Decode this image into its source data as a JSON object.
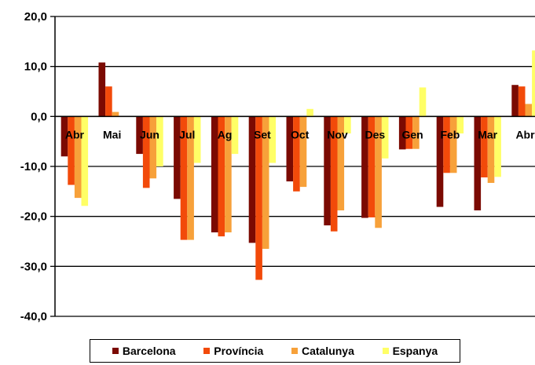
{
  "chart_data": {
    "type": "bar",
    "categories": [
      "Abr",
      "Mai",
      "Jun",
      "Jul",
      "Ag",
      "Set",
      "Oct",
      "Nov",
      "Des",
      "Gen",
      "Feb",
      "Mar",
      "Abr"
    ],
    "series": [
      {
        "name": "Barcelona",
        "color": "#7b0a02",
        "values": [
          -8.0,
          10.8,
          -7.5,
          -16.5,
          -23.2,
          -25.3,
          -13.0,
          -21.8,
          -20.3,
          -6.6,
          -18.1,
          -18.8,
          6.3
        ]
      },
      {
        "name": "Província",
        "color": "#f24a0a",
        "values": [
          -13.7,
          6.0,
          -14.3,
          -24.7,
          -24.0,
          -32.7,
          -15.0,
          -23.0,
          -20.2,
          -6.5,
          -11.3,
          -12.2,
          6.0
        ]
      },
      {
        "name": "Catalunya",
        "color": "#f7a13a",
        "values": [
          -16.3,
          0.9,
          -12.4,
          -24.7,
          -23.2,
          -26.5,
          -14.1,
          -18.8,
          -22.3,
          -6.5,
          -11.3,
          -13.3,
          2.5
        ]
      },
      {
        "name": "Espanya",
        "color": "#ffff66",
        "values": [
          -17.9,
          0.0,
          -10.0,
          -9.3,
          -7.5,
          -9.3,
          1.5,
          -3.4,
          -8.4,
          5.8,
          -3.4,
          -12.1,
          13.2
        ]
      }
    ],
    "yticks": [
      "20,0",
      "10,0",
      "0,0",
      "-10,0",
      "-20,0",
      "-30,0",
      "-40,0"
    ],
    "ylim": [
      -40,
      20
    ],
    "grid": true,
    "legend": "bottom"
  }
}
